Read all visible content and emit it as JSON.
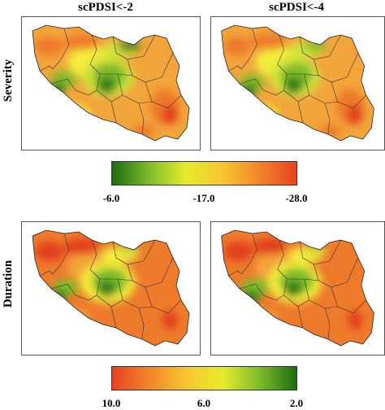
{
  "columns": [
    "scPDSI<-2",
    "scPDSI<-4"
  ],
  "rows": [
    {
      "label": "Severity",
      "colorbar": {
        "ticks": [
          "-6.0",
          "-17.0",
          "-28.0"
        ],
        "colors": [
          "#1f6b12",
          "#7dbb2a",
          "#e6ec2a",
          "#f7c531",
          "#f0842a",
          "#e8431f"
        ]
      }
    },
    {
      "label": "Duration",
      "colorbar": {
        "ticks": [
          "10.0",
          "6.0",
          "2.0"
        ],
        "colors": [
          "#e8431f",
          "#f0842a",
          "#f7c531",
          "#e6ec2a",
          "#7dbb2a",
          "#1f6b12"
        ]
      }
    }
  ],
  "map_colors": {
    "dark_green": "#2f7d1e",
    "green": "#7dbb2a",
    "yellow_green": "#cfe23a",
    "yellow": "#f3ec3a",
    "orange": "#f2a53b",
    "dark_orange": "#ee7a2c",
    "red": "#e2401d"
  }
}
